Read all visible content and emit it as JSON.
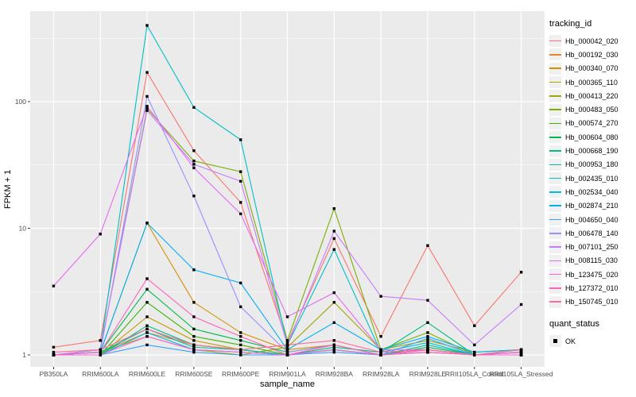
{
  "figure": {
    "panel_background": "#EBEBEB",
    "grid_color": "#FFFFFF",
    "tick_color": "#333333",
    "tick_label_color": "#4D4D4D",
    "point_color": "#000000"
  },
  "chart_data": {
    "type": "line",
    "title": "",
    "xlabel": "sample_name",
    "ylabel": "FPKM + 1",
    "y_scale": "log10",
    "y_tick_labels": [
      "1",
      "10",
      "100"
    ],
    "y_tick_values": [
      1,
      10,
      100
    ],
    "ylim": [
      0.8,
      520
    ],
    "grid": "major+minor",
    "legend_position": "right",
    "legend_title": "tracking_id",
    "point_shape": "filled-square",
    "categories": [
      "PB350LA",
      "RRIM600LA",
      "RRIM600LE",
      "RRIM600SE",
      "RRIM600PE",
      "RRIM901LA",
      "RRIM928BA",
      "RRIM928LA",
      "RRIM928LE",
      "RRII105LA_Control",
      "RRII105LA_Stressed"
    ],
    "series": [
      {
        "name": "Hb_000042_020",
        "color": "#F8766D",
        "values": [
          1.15,
          1.3,
          170,
          41,
          16,
          1.25,
          8.3,
          1.4,
          7.3,
          1.7,
          4.5
        ]
      },
      {
        "name": "Hb_000192_030",
        "color": "#E9842C",
        "values": [
          1,
          1.05,
          1.5,
          1.2,
          1.1,
          1,
          1.1,
          1,
          1.05,
          1,
          1
        ]
      },
      {
        "name": "Hb_000340_070",
        "color": "#D89000",
        "values": [
          1,
          1.05,
          11,
          2.6,
          1.5,
          1.1,
          1.2,
          1,
          1.1,
          1,
          1.05
        ]
      },
      {
        "name": "Hb_000365_110",
        "color": "#C09B00",
        "values": [
          1,
          1,
          2,
          1.3,
          1.1,
          1,
          1.1,
          1,
          1.05,
          1,
          1
        ]
      },
      {
        "name": "Hb_000413_220",
        "color": "#A3A500",
        "values": [
          1,
          1.05,
          1.4,
          1.1,
          1,
          1.15,
          2.6,
          1.1,
          1.3,
          1.05,
          1.1
        ]
      },
      {
        "name": "Hb_000483_050",
        "color": "#7CAE00",
        "values": [
          1,
          1.1,
          88,
          34,
          28,
          1.3,
          14.3,
          1.1,
          1.5,
          1,
          1.05
        ]
      },
      {
        "name": "Hb_000574_270",
        "color": "#39B600",
        "values": [
          1,
          1,
          2.6,
          1.4,
          1.2,
          1,
          1.1,
          1,
          1.1,
          1,
          1
        ]
      },
      {
        "name": "Hb_000604_080",
        "color": "#00BB4E",
        "values": [
          1,
          1.05,
          3.3,
          1.6,
          1.3,
          1.05,
          1.2,
          1,
          1.15,
          1,
          1.05
        ]
      },
      {
        "name": "Hb_000668_190",
        "color": "#00BF7D",
        "values": [
          1,
          1,
          1.7,
          1.2,
          1.1,
          1,
          1.15,
          1.05,
          1.8,
          1,
          1.1
        ]
      },
      {
        "name": "Hb_000953_180",
        "color": "#00C1A3",
        "values": [
          1,
          1.05,
          1.6,
          1.15,
          1.1,
          1,
          1.1,
          1,
          1.2,
          1,
          1
        ]
      },
      {
        "name": "Hb_002435_010",
        "color": "#00BFC4",
        "values": [
          1,
          1.1,
          400,
          90,
          50,
          1.2,
          6.8,
          1.05,
          1.25,
          1,
          1.05
        ]
      },
      {
        "name": "Hb_002534_040",
        "color": "#00BAE0",
        "values": [
          1,
          1,
          1.5,
          1.1,
          1.05,
          1,
          1.1,
          1,
          1.1,
          1,
          1
        ]
      },
      {
        "name": "Hb_002874_210",
        "color": "#00B0F6",
        "values": [
          1,
          1.05,
          11,
          4.7,
          3.7,
          1.1,
          1.8,
          1.1,
          1.4,
          1.05,
          1.1
        ]
      },
      {
        "name": "Hb_004650_040",
        "color": "#35A2FF",
        "values": [
          1,
          1,
          1.2,
          1.05,
          1,
          1,
          1.05,
          1,
          1.35,
          1,
          1.05
        ]
      },
      {
        "name": "Hb_006478_140",
        "color": "#9590FF",
        "values": [
          1,
          1.05,
          110,
          18,
          2.4,
          1.05,
          1.2,
          1,
          1.1,
          1,
          1
        ]
      },
      {
        "name": "Hb_007101_250",
        "color": "#C77CFF",
        "values": [
          1,
          1.1,
          85,
          32,
          23.5,
          1.2,
          9.5,
          2.9,
          2.7,
          1.2,
          2.5
        ]
      },
      {
        "name": "Hb_008115_030",
        "color": "#E76BF3",
        "values": [
          3.5,
          9,
          92,
          30,
          13,
          2,
          3.1,
          1.1,
          1.1,
          1,
          1.05
        ]
      },
      {
        "name": "Hb_123475_020",
        "color": "#FA62DB",
        "values": [
          1,
          1,
          1.4,
          1.1,
          1.05,
          1,
          1.1,
          1,
          1.05,
          1,
          1
        ]
      },
      {
        "name": "Hb_127372_010",
        "color": "#FF62BC",
        "values": [
          1,
          1.05,
          4,
          2,
          1.4,
          1,
          1.2,
          1,
          1.1,
          1,
          1.05
        ]
      },
      {
        "name": "Hb_150745_010",
        "color": "#FF6A98",
        "values": [
          1.05,
          1.1,
          1.6,
          1.2,
          1.1,
          1.2,
          1.3,
          1.05,
          1.1,
          1,
          1.1
        ]
      }
    ],
    "legend2": {
      "title": "quant_status",
      "items": [
        {
          "label": "OK",
          "shape": "filled-square",
          "color": "#000000"
        }
      ]
    }
  }
}
